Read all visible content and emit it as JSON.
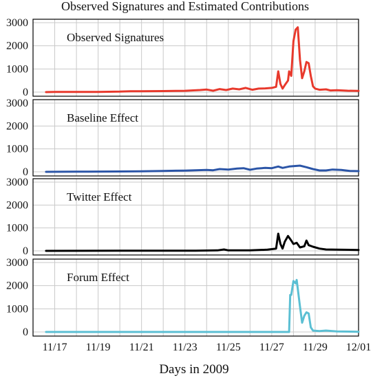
{
  "chart_data": {
    "type": "line",
    "title": "Observed Signatures and Estimated Contributions",
    "xlabel": "Days in 2009",
    "x_ticks": [
      "11/17",
      "11/19",
      "11/21",
      "11/23",
      "11/25",
      "11/27",
      "11/29",
      "12/01"
    ],
    "x_range": [
      "11/16",
      "12/01"
    ],
    "y_ticks": [
      "0",
      "1000",
      "2000",
      "3000"
    ],
    "ylim": [
      0,
      3000
    ],
    "grid": true,
    "panels": [
      {
        "name": "Observed Signatures",
        "color": "#e8392c",
        "points": [
          [
            "11/16.6",
            0
          ],
          [
            "11/17.0",
            5
          ],
          [
            "11/18.0",
            8
          ],
          [
            "11/19.0",
            10
          ],
          [
            "11/20.0",
            20
          ],
          [
            "11/20.5",
            40
          ],
          [
            "11/21.0",
            35
          ],
          [
            "11/22.0",
            45
          ],
          [
            "11/23.0",
            55
          ],
          [
            "11/23.7",
            90
          ],
          [
            "11/24.0",
            110
          ],
          [
            "11/24.3",
            60
          ],
          [
            "11/24.6",
            130
          ],
          [
            "11/24.9",
            90
          ],
          [
            "11/25.2",
            150
          ],
          [
            "11/25.5",
            120
          ],
          [
            "11/25.8",
            180
          ],
          [
            "11/26.1",
            100
          ],
          [
            "11/26.4",
            150
          ],
          [
            "11/26.7",
            160
          ],
          [
            "11/27.0",
            180
          ],
          [
            "11/27.2",
            230
          ],
          [
            "11/27.3",
            900
          ],
          [
            "11/27.4",
            350
          ],
          [
            "11/27.5",
            150
          ],
          [
            "11/27.6",
            300
          ],
          [
            "11/27.75",
            500
          ],
          [
            "11/27.8",
            900
          ],
          [
            "11/27.9",
            700
          ],
          [
            "11/28.0",
            2200
          ],
          [
            "11/28.1",
            2700
          ],
          [
            "11/28.2",
            2800
          ],
          [
            "11/28.3",
            1400
          ],
          [
            "11/28.4",
            600
          ],
          [
            "11/28.5",
            900
          ],
          [
            "11/28.6",
            1300
          ],
          [
            "11/28.7",
            1250
          ],
          [
            "11/28.8",
            700
          ],
          [
            "11/28.9",
            250
          ],
          [
            "11/29.0",
            150
          ],
          [
            "11/29.2",
            100
          ],
          [
            "11/29.5",
            120
          ],
          [
            "11/29.7",
            70
          ],
          [
            "11/30.0",
            80
          ],
          [
            "11/30.5",
            60
          ],
          [
            "12/01.0",
            50
          ]
        ]
      },
      {
        "name": "Baseline Effect",
        "color": "#2b55a7",
        "points": [
          [
            "11/16.6",
            0
          ],
          [
            "11/18.0",
            5
          ],
          [
            "11/20.0",
            15
          ],
          [
            "11/21.0",
            25
          ],
          [
            "11/22.0",
            40
          ],
          [
            "11/23.0",
            55
          ],
          [
            "11/24.0",
            80
          ],
          [
            "11/24.3",
            70
          ],
          [
            "11/24.6",
            120
          ],
          [
            "11/25.0",
            100
          ],
          [
            "11/25.4",
            140
          ],
          [
            "11/25.7",
            160
          ],
          [
            "11/26.0",
            90
          ],
          [
            "11/26.3",
            140
          ],
          [
            "11/26.7",
            170
          ],
          [
            "11/27.0",
            160
          ],
          [
            "11/27.3",
            230
          ],
          [
            "11/27.5",
            170
          ],
          [
            "11/27.8",
            230
          ],
          [
            "11/28.0",
            250
          ],
          [
            "11/28.3",
            270
          ],
          [
            "11/28.6",
            200
          ],
          [
            "11/28.9",
            120
          ],
          [
            "11/29.2",
            60
          ],
          [
            "11/29.5",
            60
          ],
          [
            "11/29.8",
            100
          ],
          [
            "11/30.2",
            80
          ],
          [
            "11/30.6",
            40
          ],
          [
            "12/01.0",
            30
          ]
        ]
      },
      {
        "name": "Twitter Effect",
        "color": "#000000",
        "points": [
          [
            "11/16.6",
            0
          ],
          [
            "11/20.0",
            5
          ],
          [
            "11/23.5",
            10
          ],
          [
            "11/24.5",
            20
          ],
          [
            "11/24.8",
            60
          ],
          [
            "11/25.0",
            20
          ],
          [
            "11/26.0",
            20
          ],
          [
            "11/26.8",
            50
          ],
          [
            "11/27.2",
            100
          ],
          [
            "11/27.3",
            750
          ],
          [
            "11/27.4",
            300
          ],
          [
            "11/27.5",
            100
          ],
          [
            "11/27.6",
            400
          ],
          [
            "11/27.75",
            650
          ],
          [
            "11/27.9",
            450
          ],
          [
            "11/28.0",
            300
          ],
          [
            "11/28.15",
            350
          ],
          [
            "11/28.3",
            150
          ],
          [
            "11/28.5",
            200
          ],
          [
            "11/28.6",
            450
          ],
          [
            "11/28.7",
            250
          ],
          [
            "11/28.9",
            180
          ],
          [
            "11/29.2",
            100
          ],
          [
            "11/29.5",
            60
          ],
          [
            "11/30.0",
            50
          ],
          [
            "12/01.0",
            40
          ]
        ]
      },
      {
        "name": "Forum Effect",
        "color": "#5bbfd3",
        "points": [
          [
            "11/16.6",
            0
          ],
          [
            "11/20.0",
            0
          ],
          [
            "11/24.0",
            0
          ],
          [
            "11/27.0",
            0
          ],
          [
            "11/27.8",
            0
          ],
          [
            "11/27.85",
            1600
          ],
          [
            "11/27.9",
            1600
          ],
          [
            "11/28.0",
            2200
          ],
          [
            "11/28.1",
            2100
          ],
          [
            "11/28.15",
            2250
          ],
          [
            "11/28.3",
            1100
          ],
          [
            "11/28.4",
            400
          ],
          [
            "11/28.5",
            700
          ],
          [
            "11/28.6",
            850
          ],
          [
            "11/28.7",
            800
          ],
          [
            "11/28.8",
            200
          ],
          [
            "11/28.9",
            60
          ],
          [
            "11/29.2",
            40
          ],
          [
            "11/29.5",
            60
          ],
          [
            "11/30.0",
            20
          ],
          [
            "12/01.0",
            10
          ]
        ]
      }
    ]
  }
}
